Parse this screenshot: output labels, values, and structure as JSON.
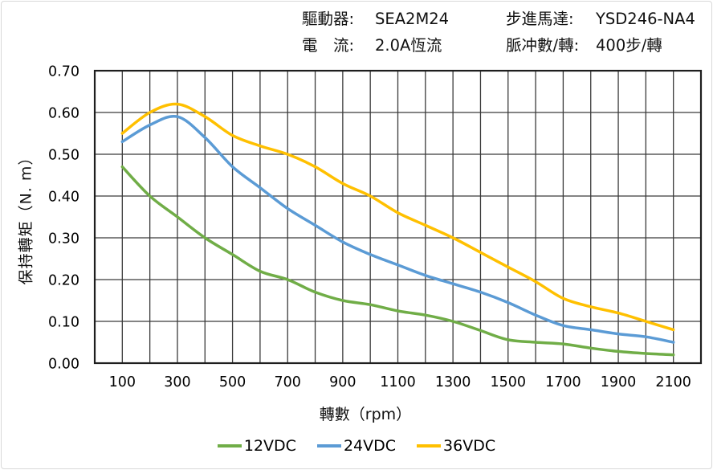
{
  "frame": {
    "bg": "#ffffff",
    "border_color": "#d9d9d9"
  },
  "header": {
    "rows": [
      {
        "left_label": "驅動器:",
        "left_value": "SEA2M24",
        "right_label": "步進馬達:",
        "right_value": "YSD246-NA4"
      },
      {
        "left_label": "電　流:",
        "left_value": "2.0A恆流",
        "right_label": "脈冲數/轉:",
        "right_value": "400步/轉"
      }
    ]
  },
  "chart_data": {
    "type": "line",
    "title": "",
    "xlabel": "轉數（rpm）",
    "ylabel": "保持轉矩（N. m）",
    "xlim": [
      0,
      2200
    ],
    "ylim": [
      0,
      0.7
    ],
    "grid": {
      "x_step": 100,
      "y_step": 0.1,
      "on": true,
      "line_color": "#3a3a3a",
      "border_color": "#1e1e1e"
    },
    "x_tick_values": [
      100,
      300,
      500,
      700,
      900,
      1100,
      1300,
      1500,
      1700,
      1900,
      2100
    ],
    "y_tick_values": [
      0.0,
      0.1,
      0.2,
      0.3,
      0.4,
      0.5,
      0.6,
      0.7
    ],
    "y_tick_decimals": 2,
    "x": [
      100,
      200,
      300,
      400,
      500,
      600,
      700,
      800,
      900,
      1000,
      1100,
      1200,
      1300,
      1400,
      1500,
      1600,
      1700,
      1800,
      1900,
      2000,
      2100
    ],
    "series": [
      {
        "name": "12VDC",
        "color": "#70AD47",
        "values": [
          0.47,
          0.4,
          0.35,
          0.3,
          0.26,
          0.22,
          0.2,
          0.17,
          0.15,
          0.14,
          0.125,
          0.115,
          0.1,
          0.078,
          0.056,
          0.05,
          0.046,
          0.036,
          0.028,
          0.023,
          0.02
        ]
      },
      {
        "name": "24VDC",
        "color": "#5B9BD5",
        "values": [
          0.53,
          0.57,
          0.59,
          0.54,
          0.47,
          0.42,
          0.37,
          0.33,
          0.29,
          0.26,
          0.235,
          0.21,
          0.19,
          0.17,
          0.145,
          0.115,
          0.09,
          0.08,
          0.07,
          0.063,
          0.05
        ]
      },
      {
        "name": "36VDC",
        "color": "#FFC000",
        "values": [
          0.55,
          0.6,
          0.62,
          0.59,
          0.545,
          0.52,
          0.5,
          0.47,
          0.43,
          0.4,
          0.36,
          0.33,
          0.3,
          0.265,
          0.23,
          0.195,
          0.155,
          0.135,
          0.12,
          0.1,
          0.08
        ]
      }
    ],
    "legend_position": "bottom"
  }
}
